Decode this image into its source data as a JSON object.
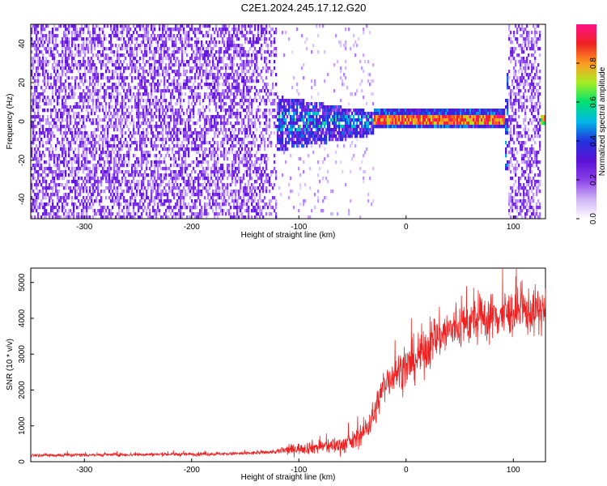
{
  "figure": {
    "title": "C2E1.2024.245.17.12.G20"
  },
  "chart_data": [
    {
      "type": "heatmap",
      "xlabel": "Height of straight line (km)",
      "ylabel": "Frequency (Hz)",
      "xlim": [
        -350,
        130
      ],
      "ylim": [
        -50,
        50
      ],
      "xticks": [
        -300,
        -200,
        -100,
        0,
        100
      ],
      "yticks": [
        -40,
        -20,
        0,
        20,
        40
      ],
      "colorbar": {
        "label": "Normalized spectral amplitude",
        "range": [
          0,
          1
        ],
        "ticks": [
          0.0,
          0.2,
          0.4,
          0.6,
          0.8
        ],
        "colormap": [
          "#ffffff",
          "#cfb3f5",
          "#8a3fe8",
          "#5a12d6",
          "#2233dd",
          "#00b8e6",
          "#00e070",
          "#a6ee22",
          "#ff9922",
          "#ee2222",
          "#ff1188"
        ]
      },
      "regions": [
        {
          "height_range": [
            -350,
            -120
          ],
          "frequency_range": [
            -50,
            50
          ],
          "amplitude": 0.1,
          "description_type": "broadband noise"
        },
        {
          "height_range": [
            -120,
            -30
          ],
          "frequency_range": [
            -12,
            10
          ],
          "amplitude": 0.35,
          "description_type": "converging signal"
        },
        {
          "height_range": [
            -30,
            92
          ],
          "frequency_center": 1,
          "frequency_width": 4,
          "amplitude": 0.95,
          "description_type": "narrow tone"
        },
        {
          "height_range": [
            95,
            125
          ],
          "frequency_range": [
            -50,
            50
          ],
          "amplitude": 0.12,
          "description_type": "broadband noise"
        }
      ]
    },
    {
      "type": "line",
      "xlabel": "Height of straight line (km)",
      "ylabel": "SNR (10 * v/v)",
      "xlim": [
        -350,
        130
      ],
      "ylim": [
        0,
        5400
      ],
      "xticks": [
        -300,
        -200,
        -100,
        0,
        100
      ],
      "yticks": [
        0,
        1000,
        2000,
        3000,
        4000,
        5000
      ],
      "color": "#ee2222",
      "series": [
        {
          "name": "",
          "x": [
            -350,
            -300,
            -250,
            -200,
            -150,
            -120,
            -100,
            -80,
            -60,
            -50,
            -40,
            -30,
            -20,
            -10,
            0,
            10,
            20,
            30,
            40,
            60,
            80,
            100,
            120,
            130
          ],
          "y": [
            180,
            190,
            200,
            210,
            230,
            280,
            370,
            420,
            470,
            560,
            800,
            1300,
            2200,
            2500,
            2600,
            2900,
            3200,
            3500,
            3650,
            3900,
            4050,
            4150,
            4200,
            4250
          ]
        }
      ]
    }
  ]
}
